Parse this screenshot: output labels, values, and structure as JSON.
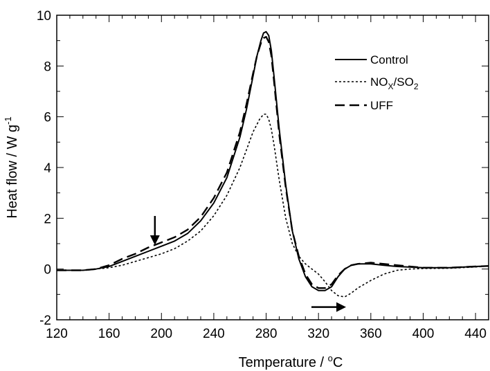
{
  "chart_data": {
    "type": "line",
    "xlabel": "Temperature / °C",
    "xlabel_parts": {
      "text": "Temperature / ",
      "sup": "o",
      "unit": "C"
    },
    "ylabel": "Heat flow / W g-1",
    "ylabel_parts": {
      "text": "Heat flow / W g",
      "sup": "-1"
    },
    "xlim": [
      120,
      450
    ],
    "ylim": [
      -2,
      10
    ],
    "xticks": [
      120,
      160,
      200,
      240,
      280,
      320,
      360,
      400,
      440
    ],
    "yticks": [
      -2,
      0,
      2,
      4,
      6,
      8,
      10
    ],
    "grid": false,
    "legend_position": "top-right",
    "legend": {
      "control": {
        "text": "Control"
      },
      "noxso2": {
        "t1": "NO",
        "s1": "X",
        "t2": "/SO",
        "s2": "2"
      },
      "uff": {
        "text": "UFF"
      }
    },
    "annotations": [
      {
        "type": "arrow",
        "direction": "down",
        "at": [
          195,
          1.0
        ]
      },
      {
        "type": "arrow",
        "direction": "right",
        "at": [
          340,
          -1.5
        ]
      }
    ],
    "series": [
      {
        "name": "Control",
        "style": "solid",
        "x": [
          120,
          140,
          150,
          160,
          170,
          180,
          190,
          200,
          210,
          220,
          230,
          240,
          250,
          260,
          265,
          270,
          273,
          276,
          278,
          280,
          282,
          284,
          286,
          290,
          295,
          300,
          305,
          310,
          315,
          320,
          325,
          330,
          335,
          340,
          345,
          350,
          360,
          370,
          380,
          400,
          420,
          440,
          450
        ],
        "y": [
          -0.05,
          -0.05,
          0.0,
          0.1,
          0.3,
          0.5,
          0.7,
          0.9,
          1.1,
          1.4,
          1.9,
          2.6,
          3.6,
          5.2,
          6.3,
          7.6,
          8.4,
          9.0,
          9.3,
          9.35,
          9.2,
          8.6,
          7.6,
          5.5,
          3.3,
          1.5,
          0.4,
          -0.3,
          -0.7,
          -0.85,
          -0.85,
          -0.7,
          -0.3,
          0.0,
          0.15,
          0.2,
          0.2,
          0.15,
          0.1,
          0.05,
          0.05,
          0.1,
          0.12
        ]
      },
      {
        "name": "NOX/SO2",
        "style": "dotted",
        "x": [
          120,
          140,
          150,
          160,
          170,
          180,
          190,
          200,
          210,
          220,
          230,
          240,
          250,
          260,
          265,
          270,
          275,
          278,
          280,
          282,
          284,
          286,
          290,
          295,
          300,
          305,
          310,
          315,
          320,
          325,
          330,
          335,
          340,
          345,
          350,
          360,
          370,
          380,
          390,
          400,
          420,
          440,
          450
        ],
        "y": [
          -0.05,
          -0.05,
          0.0,
          0.05,
          0.15,
          0.3,
          0.45,
          0.6,
          0.8,
          1.1,
          1.5,
          2.1,
          2.9,
          4.0,
          4.7,
          5.4,
          5.9,
          6.1,
          6.1,
          5.9,
          5.5,
          4.9,
          3.5,
          2.0,
          1.0,
          0.5,
          0.2,
          0.0,
          -0.2,
          -0.5,
          -0.85,
          -1.05,
          -1.1,
          -0.95,
          -0.75,
          -0.45,
          -0.2,
          -0.05,
          0.0,
          0.02,
          0.03,
          0.08,
          0.12
        ]
      },
      {
        "name": "UFF",
        "style": "dashed",
        "x": [
          120,
          140,
          150,
          160,
          170,
          180,
          190,
          200,
          210,
          220,
          230,
          240,
          250,
          260,
          265,
          270,
          273,
          276,
          278,
          280,
          282,
          284,
          286,
          290,
          295,
          300,
          305,
          310,
          315,
          320,
          325,
          330,
          335,
          340,
          345,
          350,
          360,
          370,
          380,
          400,
          420,
          440,
          450
        ],
        "y": [
          -0.05,
          -0.05,
          0.0,
          0.15,
          0.4,
          0.6,
          0.85,
          1.05,
          1.25,
          1.55,
          2.05,
          2.8,
          3.8,
          5.4,
          6.5,
          7.7,
          8.4,
          8.9,
          9.1,
          9.15,
          8.95,
          8.4,
          7.4,
          5.3,
          3.2,
          1.5,
          0.5,
          -0.2,
          -0.6,
          -0.75,
          -0.75,
          -0.6,
          -0.25,
          0.0,
          0.15,
          0.2,
          0.25,
          0.2,
          0.15,
          0.05,
          0.05,
          0.1,
          0.12
        ]
      }
    ]
  }
}
